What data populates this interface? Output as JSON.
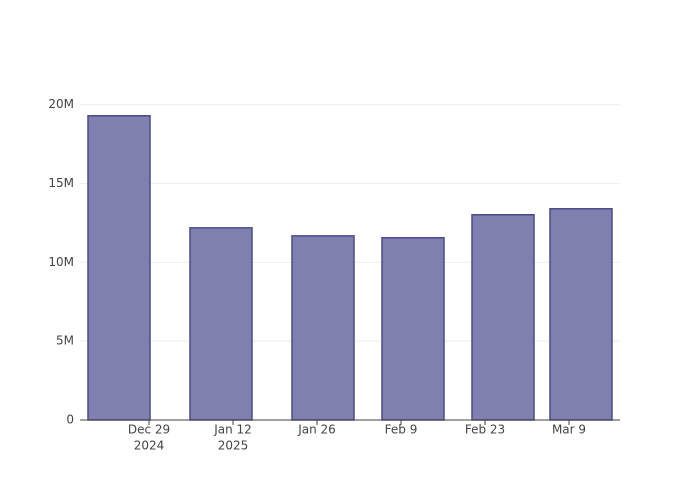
{
  "chart_data": {
    "type": "bar",
    "x": [
      "2024-12-24",
      "2025-01-10",
      "2025-01-27",
      "2025-02-11",
      "2025-02-26",
      "2025-03-11"
    ],
    "values": [
      19300000,
      12190000,
      11680000,
      11560000,
      13020000,
      13400000
    ],
    "color": "#7f7fb0",
    "edge_color": "#4b4b8b",
    "xlim": [
      "2024-12-17T12:00",
      "2025-03-17T12:00"
    ],
    "xticks": [
      {
        "value": "2024-12-29",
        "label": [
          "Dec 29",
          "2024"
        ]
      },
      {
        "value": "2025-01-12",
        "label": [
          "Jan 12",
          "2025"
        ]
      },
      {
        "value": "2025-01-26",
        "label": [
          "Jan 26"
        ]
      },
      {
        "value": "2025-02-09",
        "label": [
          "Feb 9"
        ]
      },
      {
        "value": "2025-02-23",
        "label": [
          "Feb 23"
        ]
      },
      {
        "value": "2025-03-09",
        "label": [
          "Mar 9"
        ]
      }
    ],
    "ylim": [
      0,
      20300000
    ],
    "yticks": [
      0,
      {
        "value": 5000000,
        "label": "5M"
      },
      {
        "value": 10000000,
        "label": "10M"
      },
      {
        "value": 15000000,
        "label": "15M"
      },
      {
        "value": 20000000,
        "label": "20M"
      }
    ],
    "grid": true
  }
}
